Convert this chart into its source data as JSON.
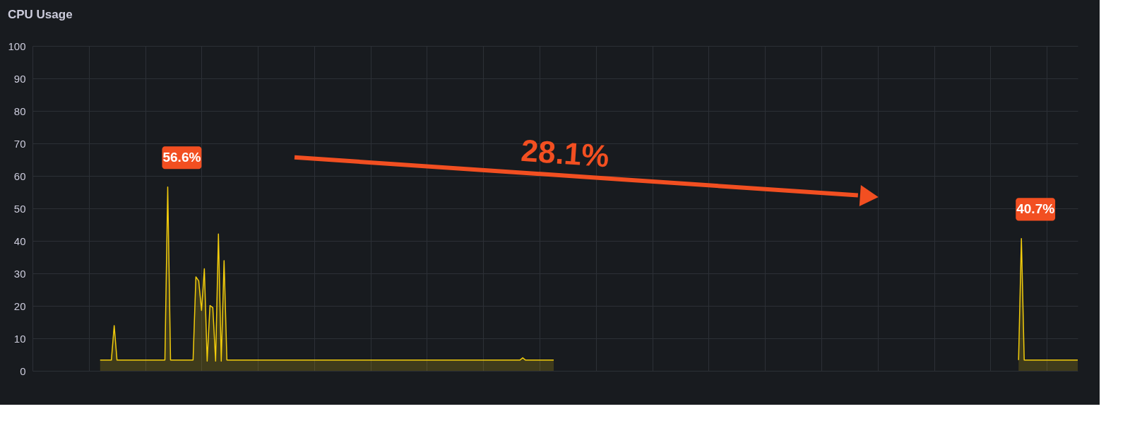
{
  "chart_data": {
    "type": "area",
    "title": "CPU Usage",
    "categories": [
      null,
      null,
      null,
      null,
      null,
      null,
      null,
      null,
      null,
      null,
      null,
      null,
      null,
      null,
      null,
      null,
      null,
      null,
      null,
      null,
      null,
      null,
      null,
      null,
      null,
      null,
      null,
      null,
      null,
      null,
      null,
      null,
      null,
      null,
      null,
      null,
      null,
      null,
      null,
      null,
      null,
      null,
      null,
      null,
      null,
      null,
      null,
      null,
      null,
      null,
      null,
      null,
      null,
      null,
      null,
      null,
      null,
      null,
      null,
      null,
      null,
      null,
      null,
      null,
      null,
      null,
      null,
      null,
      null,
      null,
      null,
      null,
      null,
      null,
      null,
      null,
      null,
      null,
      null,
      null,
      null,
      null,
      null,
      null,
      null,
      null,
      null,
      null,
      null,
      null,
      null,
      null,
      null,
      null,
      null,
      null,
      null,
      null,
      null,
      null,
      null,
      null,
      null,
      null,
      null,
      null,
      null,
      null,
      null,
      null,
      null,
      null,
      null,
      null,
      null,
      null,
      null,
      null,
      null,
      null,
      null,
      null,
      null,
      null,
      null,
      null,
      null,
      null,
      null,
      null,
      null,
      null,
      null,
      null,
      null,
      null,
      null,
      null,
      null,
      null,
      null,
      null,
      null,
      null,
      null,
      null,
      null,
      null,
      null,
      null,
      null,
      null,
      null,
      null,
      null,
      null,
      null,
      null,
      null,
      null,
      null,
      null,
      null,
      null,
      null,
      null,
      null,
      null,
      null,
      null,
      null,
      null,
      null,
      null,
      null,
      null,
      null,
      null,
      null,
      null,
      null,
      null,
      null,
      null,
      null,
      null,
      null,
      null,
      null,
      null,
      null,
      null,
      null,
      null,
      null,
      null,
      null,
      null,
      null,
      null,
      null,
      null,
      null,
      null,
      null,
      null,
      null,
      null,
      null,
      null,
      null,
      null,
      null,
      null,
      null,
      null,
      null,
      null,
      null,
      null,
      null,
      null,
      null,
      null,
      null,
      null,
      null,
      null,
      null,
      null,
      null,
      null,
      null,
      null,
      null,
      null,
      null,
      null,
      null,
      null,
      null,
      null,
      null,
      null,
      null,
      null,
      null,
      null,
      null,
      null,
      null,
      null,
      null,
      null,
      null,
      null,
      null,
      null,
      null,
      null,
      null,
      null,
      null,
      null,
      null,
      null,
      null,
      null,
      null,
      null,
      null,
      null,
      null,
      null,
      null,
      null,
      null,
      null,
      null,
      null,
      null,
      null,
      null,
      null,
      null,
      null,
      null,
      null,
      null,
      null,
      null,
      null,
      null,
      null,
      null,
      null,
      null,
      null,
      null,
      null,
      null,
      null,
      null,
      null,
      null,
      null,
      null,
      null,
      null,
      null,
      null,
      null,
      null,
      null,
      null,
      null,
      null,
      null,
      null,
      null,
      null,
      null,
      null,
      null,
      null,
      null,
      null,
      null,
      null,
      null,
      null,
      null,
      null,
      null,
      null,
      null,
      null,
      null,
      null,
      null,
      null,
      null,
      null,
      null,
      null,
      null,
      null,
      null,
      null,
      null,
      null,
      null,
      null,
      null,
      null,
      null,
      null,
      null,
      null,
      null,
      null,
      null,
      null,
      null,
      null,
      null,
      null,
      null,
      null,
      null,
      null,
      null
    ],
    "series": [
      {
        "color": "#f2cc0c",
        "values": [
          null,
          null,
          null,
          null,
          null,
          null,
          null,
          null,
          null,
          null,
          null,
          null,
          null,
          null,
          null,
          null,
          null,
          null,
          null,
          null,
          null,
          null,
          null,
          null,
          3.3,
          3.3,
          3.3,
          3.3,
          3.3,
          13.9,
          3.3,
          3.3,
          3.3,
          3.3,
          3.3,
          3.3,
          3.3,
          3.3,
          3.3,
          3.3,
          3.3,
          3.3,
          3.3,
          3.3,
          3.3,
          3.3,
          3.3,
          3.3,
          56.6,
          3.3,
          3.3,
          3.3,
          3.3,
          3.3,
          3.3,
          3.3,
          3.3,
          3.3,
          28.9,
          27.7,
          18.6,
          31.4,
          3.0,
          20.1,
          19.5,
          3.0,
          42.1,
          3.0,
          33.9,
          3.3,
          3.3,
          3.3,
          3.3,
          3.3,
          3.3,
          3.3,
          3.3,
          3.3,
          3.3,
          3.3,
          3.3,
          3.3,
          3.3,
          3.3,
          3.3,
          3.3,
          3.3,
          3.3,
          3.3,
          3.3,
          3.3,
          3.3,
          3.3,
          3.3,
          3.3,
          3.3,
          3.3,
          3.3,
          3.3,
          3.3,
          3.3,
          3.3,
          3.3,
          3.3,
          3.3,
          3.3,
          3.3,
          3.3,
          3.3,
          3.3,
          3.3,
          3.3,
          3.3,
          3.3,
          3.3,
          3.3,
          3.3,
          3.3,
          3.3,
          3.3,
          3.3,
          3.3,
          3.3,
          3.3,
          3.3,
          3.3,
          3.3,
          3.3,
          3.3,
          3.3,
          3.3,
          3.3,
          3.3,
          3.3,
          3.3,
          3.3,
          3.3,
          3.3,
          3.3,
          3.3,
          3.3,
          3.3,
          3.3,
          3.3,
          3.3,
          3.3,
          3.3,
          3.3,
          3.3,
          3.3,
          3.3,
          3.3,
          3.3,
          3.3,
          3.3,
          3.3,
          3.3,
          3.3,
          3.3,
          3.3,
          3.3,
          3.3,
          3.3,
          3.3,
          3.3,
          3.3,
          3.3,
          3.3,
          3.3,
          3.3,
          3.3,
          3.3,
          3.3,
          3.3,
          4.0,
          3.3,
          3.3,
          3.3,
          3.3,
          3.3,
          3.3,
          3.3,
          3.3,
          3.3,
          3.3,
          3.3,
          null,
          null,
          null,
          null,
          null,
          null,
          null,
          null,
          null,
          null,
          null,
          null,
          null,
          null,
          null,
          null,
          null,
          null,
          null,
          null,
          null,
          null,
          null,
          null,
          null,
          null,
          null,
          null,
          null,
          null,
          null,
          null,
          null,
          null,
          null,
          null,
          null,
          null,
          null,
          null,
          null,
          null,
          null,
          null,
          null,
          null,
          null,
          null,
          null,
          null,
          null,
          null,
          null,
          null,
          null,
          null,
          null,
          null,
          null,
          null,
          null,
          null,
          null,
          null,
          null,
          null,
          null,
          null,
          null,
          null,
          null,
          null,
          null,
          null,
          null,
          null,
          null,
          null,
          null,
          null,
          null,
          null,
          null,
          null,
          null,
          null,
          null,
          null,
          null,
          null,
          null,
          null,
          null,
          null,
          null,
          null,
          null,
          null,
          null,
          null,
          null,
          null,
          null,
          null,
          null,
          null,
          null,
          null,
          null,
          null,
          null,
          null,
          null,
          null,
          null,
          null,
          null,
          null,
          null,
          null,
          null,
          null,
          null,
          null,
          null,
          null,
          null,
          null,
          null,
          null,
          null,
          null,
          null,
          null,
          null,
          null,
          null,
          null,
          null,
          null,
          null,
          null,
          null,
          null,
          null,
          null,
          null,
          null,
          null,
          null,
          null,
          null,
          null,
          null,
          null,
          null,
          null,
          null,
          null,
          null,
          null,
          null,
          null,
          null,
          3.3,
          40.7,
          3.3,
          3.3,
          3.3,
          3.3,
          3.3,
          3.3,
          3.3,
          3.3,
          3.3,
          3.3,
          3.3,
          3.3,
          3.3,
          3.3,
          3.3,
          3.3,
          3.3,
          3.3,
          3.3,
          3.3
        ]
      }
    ],
    "ylim": [
      0,
      100
    ],
    "yticks": [
      0,
      10,
      20,
      30,
      40,
      50,
      60,
      70,
      80,
      90,
      100
    ],
    "grid": true,
    "tick_labels": "y",
    "annotations": [
      "56.6%",
      "40.7%",
      "28.1%"
    ]
  }
}
